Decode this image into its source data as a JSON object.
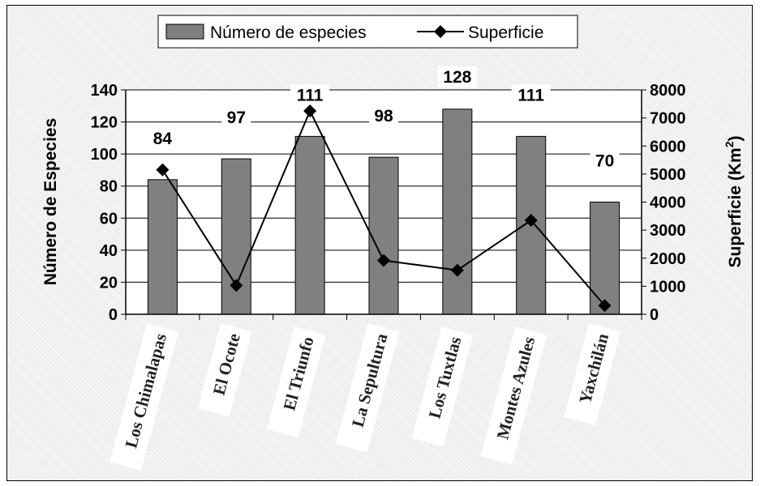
{
  "chart_data": {
    "type": "bar",
    "categories": [
      "Los Chimalapas",
      "El Ocote",
      "El Triunfo",
      "La Sepultura",
      "Los Tuxtlas",
      "Montes Azules",
      "Yaxchilán"
    ],
    "series": [
      {
        "name": "Número de especies",
        "type": "bar",
        "axis": "left",
        "values": [
          84,
          97,
          111,
          98,
          128,
          111,
          70
        ],
        "color": "#808080"
      },
      {
        "name": "Superficie",
        "type": "line",
        "axis": "right",
        "values": [
          5150,
          1030,
          7250,
          1920,
          1570,
          3350,
          310
        ],
        "color": "#000000",
        "marker": "diamond"
      }
    ],
    "data_labels": [
      "84",
      "97",
      "111",
      "98",
      "128",
      "111",
      "70"
    ],
    "ylabel": "Número de Especies",
    "y2label_text": "Superficie (Km",
    "y2label_sup": "2",
    "y2label_close": ")",
    "ylim": [
      0,
      140
    ],
    "y2lim": [
      0,
      8000
    ],
    "yticks": [
      0,
      20,
      40,
      60,
      80,
      100,
      120,
      140
    ],
    "y2ticks": [
      0,
      1000,
      2000,
      3000,
      4000,
      5000,
      6000,
      7000,
      8000
    ],
    "grid": true,
    "legend": "top-center"
  }
}
